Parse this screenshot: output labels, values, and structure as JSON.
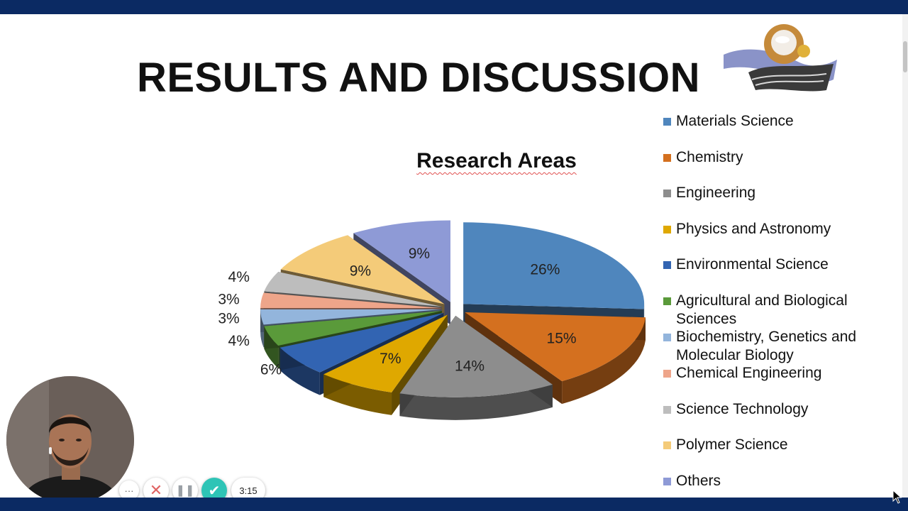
{
  "slide": {
    "title": "RESULTS AND DISCUSSION"
  },
  "chart_data": {
    "type": "pie",
    "title": "Research Areas",
    "categories": [
      "Materials Science",
      "Chemistry",
      "Engineering",
      "Physics and Astronomy",
      "Environmental Science",
      "Agricultural and Biological Sciences",
      "Biochemistry, Genetics and Molecular Biology",
      "Chemical Engineering",
      "Science Technology",
      "Polymer Science",
      "Others"
    ],
    "values": [
      26,
      15,
      14,
      7,
      6,
      4,
      3,
      3,
      4,
      9,
      9
    ],
    "value_labels": [
      "26%",
      "15%",
      "14%",
      "7%",
      "6%",
      "4%",
      "3%",
      "3%",
      "4%",
      "9%",
      "9%"
    ],
    "colors": [
      "#4f86bd",
      "#d4701f",
      "#8d8d8d",
      "#dfa800",
      "#3264b2",
      "#5a9a3a",
      "#93b5dc",
      "#eea58a",
      "#bdbdbd",
      "#f4cb79",
      "#8e9ad6"
    ],
    "style": "exploded 3d pie",
    "legend": "right"
  },
  "recorder": {
    "more_label": "···",
    "close_icon": "close-icon",
    "pause_icon": "pause-icon",
    "done_icon": "check-icon",
    "elapsed": "3:15"
  }
}
